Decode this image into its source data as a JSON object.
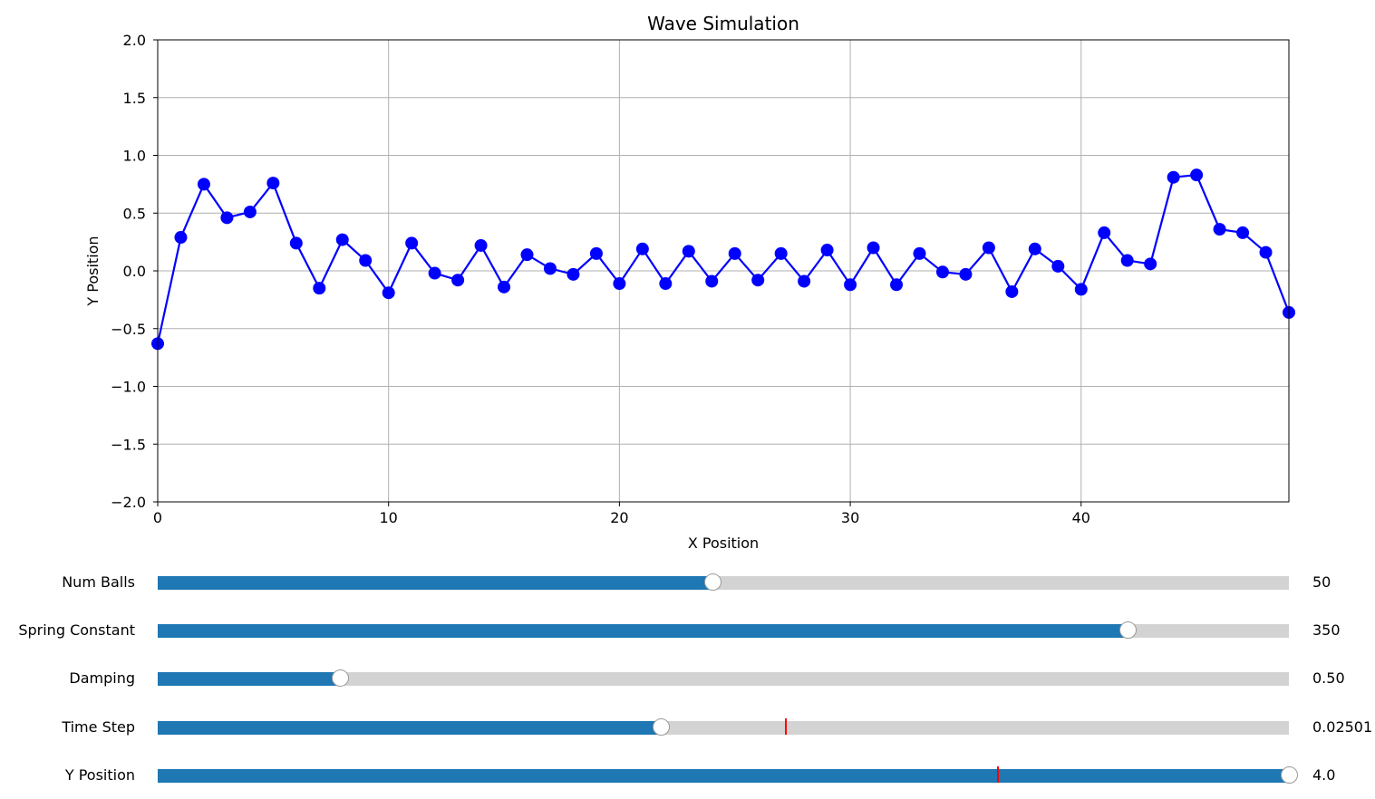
{
  "chart_data": {
    "type": "line",
    "title": "Wave Simulation",
    "xlabel": "X Position",
    "ylabel": "Y Position",
    "xlim": [
      0,
      49
    ],
    "ylim": [
      -2.0,
      2.0
    ],
    "grid": true,
    "xticks": [
      "0",
      "10",
      "20",
      "30",
      "40"
    ],
    "yticks": [
      "−2.0",
      "−1.5",
      "−1.0",
      "−0.5",
      "0.0",
      "0.5",
      "1.0",
      "1.5",
      "2.0"
    ],
    "series": [
      {
        "color": "#0000ff",
        "marker": "circle",
        "x": [
          0,
          1,
          2,
          3,
          4,
          5,
          6,
          7,
          8,
          9,
          10,
          11,
          12,
          13,
          14,
          15,
          16,
          17,
          18,
          19,
          20,
          21,
          22,
          23,
          24,
          25,
          26,
          27,
          28,
          29,
          30,
          31,
          32,
          33,
          34,
          35,
          36,
          37,
          38,
          39,
          40,
          41,
          42,
          43,
          44,
          45,
          46,
          47,
          48,
          49
        ],
        "y": [
          -0.63,
          0.29,
          0.75,
          0.46,
          0.51,
          0.76,
          0.24,
          -0.15,
          0.27,
          0.09,
          -0.19,
          0.24,
          -0.02,
          -0.08,
          0.22,
          -0.14,
          0.14,
          0.02,
          -0.03,
          0.15,
          -0.11,
          0.19,
          -0.11,
          0.17,
          -0.09,
          0.15,
          -0.08,
          0.15,
          -0.09,
          0.18,
          -0.12,
          0.2,
          -0.12,
          0.15,
          -0.01,
          -0.03,
          0.2,
          -0.18,
          0.19,
          0.04,
          -0.16,
          0.33,
          0.09,
          0.06,
          0.81,
          0.83,
          0.36,
          0.33,
          0.16,
          -0.36
        ]
      }
    ]
  },
  "sliders": [
    {
      "label": "Num Balls",
      "value_text": "50",
      "fraction": 0.49
    },
    {
      "label": "Spring Constant",
      "value_text": "350",
      "fraction": 0.857
    },
    {
      "label": "Damping",
      "value_text": "0.50",
      "fraction": 0.161
    },
    {
      "label": "Time Step",
      "value_text": "0.02501",
      "fraction": 0.445,
      "initial_fraction": 0.555
    },
    {
      "label": "Y Position",
      "value_text": "4.0",
      "fraction": 1.0,
      "initial_fraction": 0.743
    }
  ],
  "colors": {
    "line": "#0000ff",
    "slider_fill": "#1f77b4",
    "slider_track": "#d3d3d3",
    "initial_marker": "#ff0000",
    "grid": "#b0b0b0"
  }
}
